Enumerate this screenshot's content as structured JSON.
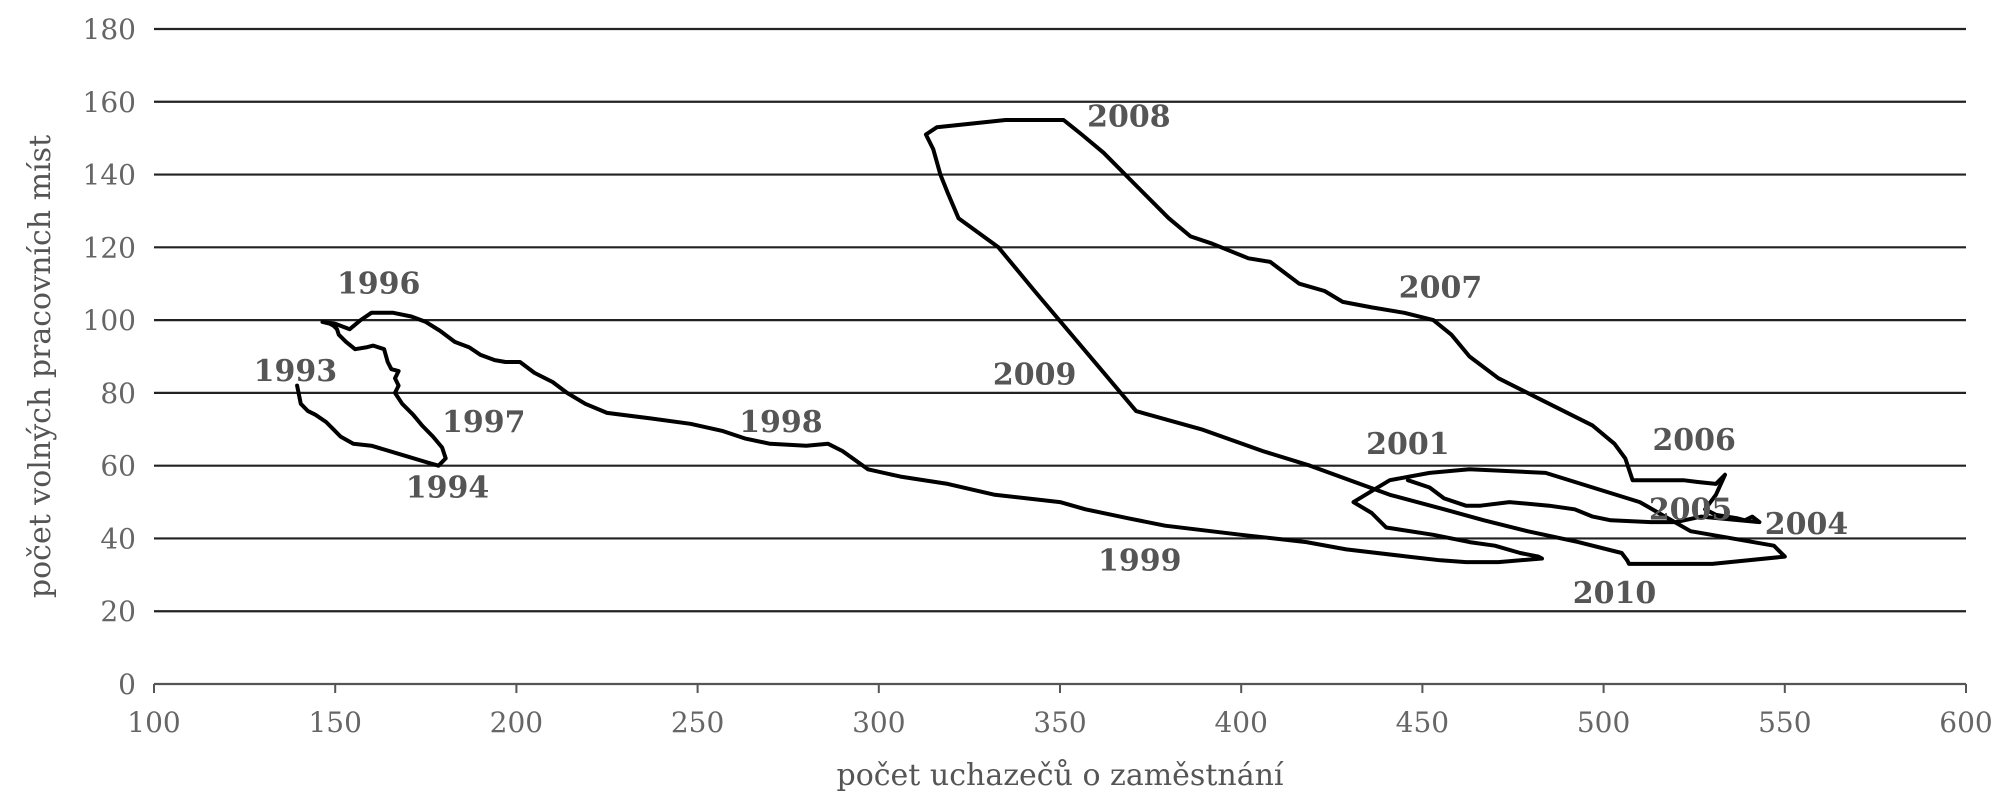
{
  "chart_data": {
    "type": "line",
    "xlabel": "počet uchazečů o zaměstnání",
    "ylabel": "počet volných pracovních míst",
    "xlim": [
      100,
      600
    ],
    "ylim": [
      0,
      180
    ],
    "x_ticks": [
      "100",
      "150",
      "200",
      "250",
      "300",
      "350",
      "400",
      "450",
      "500",
      "550",
      "600"
    ],
    "y_ticks": [
      "0",
      "20",
      "40",
      "60",
      "80",
      "100",
      "120",
      "140",
      "160",
      "180"
    ],
    "grid": "horizontal",
    "colors": {
      "line": "#000000",
      "grid": "#222222",
      "text": "#555555"
    },
    "series": [
      {
        "x": [
          139.5,
          140.5,
          142.5,
          144.5,
          147.5,
          149.5,
          151.5,
          155,
          160,
          170,
          175,
          178.5,
          180.5,
          179.5,
          177,
          174,
          171.5,
          168.5,
          166.5,
          167.5,
          166.5,
          167.5,
          165.5,
          164.5,
          163.5,
          160.5,
          158.5,
          155.5,
          153,
          151,
          150.5,
          149.5,
          148.5,
          146.5,
          150,
          154,
          157,
          160,
          166,
          171,
          175,
          179,
          183,
          187,
          190,
          194,
          197,
          201,
          205,
          210,
          214,
          219,
          225,
          237,
          248,
          257,
          263,
          270,
          280,
          286,
          290,
          297,
          306,
          319,
          332,
          350,
          357,
          369,
          379,
          400,
          418,
          429,
          446,
          455,
          462,
          471,
          483,
          482,
          477,
          470,
          463,
          453,
          440,
          436,
          431,
          436,
          441,
          452,
          463,
          484,
          510,
          524,
          547,
          550,
          530,
          513,
          507,
          506.5
        ],
        "y": [
          82,
          77,
          75,
          74,
          72,
          70,
          68,
          66,
          65.5,
          62.5,
          61,
          60,
          62,
          65,
          68,
          71,
          74,
          77,
          80,
          82,
          84,
          86,
          86.5,
          88.5,
          92,
          93,
          92.5,
          92,
          94,
          96,
          97.5,
          98.5,
          99,
          99.5,
          99,
          97.5,
          100,
          102,
          102,
          101,
          99.5,
          97,
          94,
          92.5,
          90.5,
          89,
          88.5,
          88.5,
          85.5,
          83,
          80,
          77,
          74.5,
          73,
          71.5,
          69.5,
          67.5,
          66,
          65.5,
          66,
          64,
          59,
          57,
          55,
          52,
          50,
          48,
          45.5,
          43.5,
          41,
          39,
          37,
          35,
          34,
          33.5,
          33.5,
          34.5,
          35,
          36,
          38,
          39,
          41,
          43,
          47,
          50,
          53,
          56,
          58,
          59,
          58,
          50,
          42,
          38,
          35,
          33,
          33,
          33,
          34
        ]
      },
      {
        "x": [
          506.5,
          505,
          493,
          479,
          467,
          456,
          441,
          430,
          419,
          406,
          389,
          371,
          360,
          343,
          333,
          322,
          319,
          317,
          315,
          313,
          316,
          335,
          345,
          351,
          356,
          362,
          371,
          380,
          386,
          392,
          402,
          408,
          416,
          423,
          428,
          436,
          445,
          453,
          458,
          463,
          471,
          483,
          497,
          503,
          506,
          508,
          516,
          522,
          526,
          531,
          533.5,
          531,
          528,
          531,
          537,
          539,
          541,
          543,
          527,
          520,
          513,
          502,
          497,
          492,
          485,
          474,
          466,
          462,
          456,
          452,
          446
        ],
        "y": [
          34,
          36,
          39,
          42,
          45,
          48,
          52,
          56,
          60,
          64,
          70,
          75,
          88,
          108,
          120,
          128,
          135,
          140,
          147,
          151,
          153,
          155,
          155,
          155,
          151,
          146,
          137,
          128,
          123,
          121,
          117,
          116,
          110,
          108,
          105,
          103.5,
          102,
          100,
          96,
          90,
          84,
          78,
          71,
          66,
          62,
          56,
          56,
          56,
          55.5,
          55,
          57.5,
          52,
          48,
          46.5,
          45.5,
          45,
          46,
          44.5,
          46,
          44.5,
          44.5,
          45,
          46,
          48,
          49,
          50,
          49,
          49,
          51,
          54,
          56
        ]
      }
    ],
    "annotations": [
      {
        "text": "1993",
        "x": 139,
        "y": 86
      },
      {
        "text": "1994",
        "x": 181,
        "y": 54
      },
      {
        "text": "1996",
        "x": 162,
        "y": 110
      },
      {
        "text": "1997",
        "x": 191,
        "y": 72
      },
      {
        "text": "1998",
        "x": 273,
        "y": 72
      },
      {
        "text": "1999",
        "x": 372,
        "y": 34
      },
      {
        "text": "2001",
        "x": 446,
        "y": 66
      },
      {
        "text": "2004",
        "x": 556,
        "y": 44
      },
      {
        "text": "2005",
        "x": 524,
        "y": 48
      },
      {
        "text": "2006",
        "x": 525,
        "y": 67
      },
      {
        "text": "2007",
        "x": 455,
        "y": 109
      },
      {
        "text": "2008",
        "x": 369,
        "y": 156
      },
      {
        "text": "2009",
        "x": 343,
        "y": 85
      },
      {
        "text": "2010",
        "x": 503,
        "y": 25
      }
    ]
  }
}
